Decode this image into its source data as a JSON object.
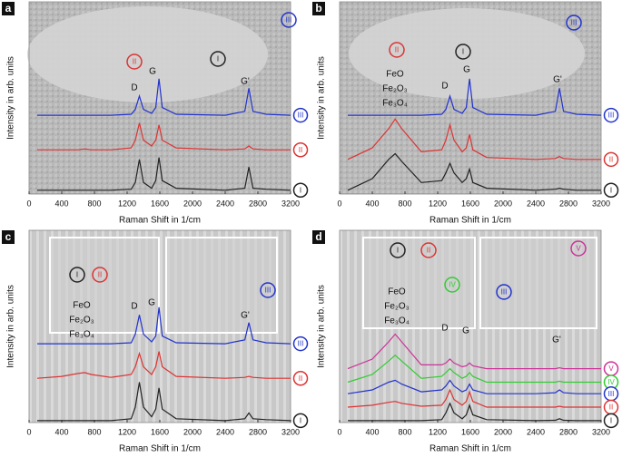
{
  "chart_data": [
    {
      "type": "line",
      "panel": "a",
      "x_label": "Raman Shift in 1/cm",
      "y_label": "Intensity in arb. units",
      "xlim": [
        0,
        3200
      ],
      "xticks": [
        0,
        400,
        800,
        1200,
        1600,
        2000,
        2400,
        2800,
        3200
      ],
      "ylim": [
        0,
        10
      ],
      "x": [
        100,
        400,
        600,
        680,
        760,
        1000,
        1250,
        1300,
        1350,
        1400,
        1500,
        1550,
        1590,
        1630,
        1800,
        2400,
        2640,
        2690,
        2740,
        2900,
        3200
      ],
      "series": [
        {
          "name": "III",
          "color": "#2233cc",
          "values": [
            4.1,
            4.1,
            4.1,
            4.1,
            4.1,
            4.1,
            4.15,
            4.4,
            5.1,
            4.4,
            4.2,
            4.5,
            6.0,
            4.5,
            4.15,
            4.1,
            4.3,
            5.5,
            4.3,
            4.15,
            4.1
          ]
        },
        {
          "name": "II",
          "color": "#dd3333",
          "values": [
            2.3,
            2.3,
            2.3,
            2.35,
            2.3,
            2.3,
            2.4,
            2.8,
            3.7,
            2.8,
            2.5,
            2.8,
            3.6,
            2.8,
            2.4,
            2.3,
            2.35,
            2.5,
            2.35,
            2.3,
            2.3
          ]
        },
        {
          "name": "I",
          "color": "#222222",
          "values": [
            0.2,
            0.2,
            0.2,
            0.2,
            0.2,
            0.2,
            0.25,
            0.6,
            1.8,
            0.6,
            0.3,
            0.7,
            1.9,
            0.7,
            0.3,
            0.2,
            0.3,
            1.4,
            0.3,
            0.25,
            0.2
          ]
        }
      ],
      "peak_labels": [
        "D",
        "G",
        "G'"
      ],
      "image_labels": [
        {
          "text": "III",
          "color": "#2233cc"
        },
        {
          "text": "II",
          "color": "#dd3333"
        },
        {
          "text": "I",
          "color": "#222222"
        }
      ]
    },
    {
      "type": "line",
      "panel": "b",
      "x_label": "Raman Shift in 1/cm",
      "y_label": "Intensity in arb. units",
      "xlim": [
        0,
        3200
      ],
      "xticks": [
        0,
        400,
        800,
        1200,
        1600,
        2000,
        2400,
        2800,
        3200
      ],
      "ylim": [
        0,
        10
      ],
      "x": [
        100,
        400,
        600,
        680,
        760,
        1000,
        1250,
        1300,
        1350,
        1400,
        1500,
        1550,
        1590,
        1630,
        1800,
        2400,
        2640,
        2690,
        2740,
        2900,
        3200
      ],
      "series": [
        {
          "name": "III",
          "color": "#2233cc",
          "values": [
            4.1,
            4.1,
            4.1,
            4.1,
            4.1,
            4.1,
            4.15,
            4.4,
            5.1,
            4.4,
            4.2,
            4.5,
            6.0,
            4.5,
            4.15,
            4.1,
            4.3,
            5.5,
            4.3,
            4.15,
            4.1
          ]
        },
        {
          "name": "II",
          "color": "#dd3333",
          "values": [
            1.8,
            2.4,
            3.4,
            3.9,
            3.4,
            2.2,
            2.3,
            2.8,
            3.6,
            2.8,
            2.2,
            2.4,
            3.1,
            2.3,
            1.9,
            1.8,
            1.85,
            1.95,
            1.85,
            1.8,
            1.8
          ]
        },
        {
          "name": "I",
          "color": "#222222",
          "values": [
            0.2,
            0.8,
            1.8,
            2.1,
            1.7,
            0.6,
            0.7,
            1.1,
            1.6,
            1.1,
            0.6,
            0.8,
            1.3,
            0.6,
            0.3,
            0.2,
            0.25,
            0.3,
            0.25,
            0.2,
            0.2
          ]
        }
      ],
      "peak_labels": [
        "D",
        "G",
        "G'"
      ],
      "phase_labels": [
        "FeO",
        "Fe₂O₃",
        "Fe₃O₄"
      ],
      "image_labels": [
        {
          "text": "II",
          "color": "#dd3333"
        },
        {
          "text": "I",
          "color": "#222222"
        },
        {
          "text": "III",
          "color": "#2233cc"
        }
      ]
    },
    {
      "type": "line",
      "panel": "c",
      "x_label": "Raman Shift in 1/cm",
      "y_label": "Intensity in arb. units",
      "xlim": [
        0,
        3200
      ],
      "xticks": [
        0,
        400,
        800,
        1200,
        1600,
        2000,
        2400,
        2800,
        3200
      ],
      "ylim": [
        0,
        10
      ],
      "x": [
        100,
        400,
        600,
        680,
        760,
        1000,
        1250,
        1300,
        1350,
        1400,
        1500,
        1550,
        1590,
        1630,
        1800,
        2400,
        2640,
        2690,
        2740,
        2900,
        3200
      ],
      "series": [
        {
          "name": "III",
          "color": "#2233cc",
          "values": [
            4.1,
            4.1,
            4.1,
            4.1,
            4.1,
            4.1,
            4.15,
            4.6,
            5.6,
            4.6,
            4.2,
            4.5,
            6.0,
            4.5,
            4.15,
            4.1,
            4.3,
            5.2,
            4.3,
            4.15,
            4.1
          ]
        },
        {
          "name": "II",
          "color": "#dd3333",
          "values": [
            2.3,
            2.4,
            2.55,
            2.6,
            2.5,
            2.35,
            2.5,
            2.9,
            3.6,
            2.9,
            2.5,
            2.9,
            3.7,
            2.9,
            2.4,
            2.3,
            2.35,
            2.4,
            2.35,
            2.3,
            2.3
          ]
        },
        {
          "name": "I",
          "color": "#222222",
          "values": [
            0.1,
            0.1,
            0.1,
            0.1,
            0.1,
            0.1,
            0.2,
            0.8,
            2.1,
            0.8,
            0.3,
            0.7,
            1.8,
            0.7,
            0.2,
            0.1,
            0.2,
            0.5,
            0.2,
            0.15,
            0.1
          ]
        }
      ],
      "peak_labels": [
        "D",
        "G",
        "G'"
      ],
      "phase_labels": [
        "FeO",
        "Fe₂O₃",
        "Fe₃O₄"
      ],
      "image_labels": [
        {
          "text": "I",
          "color": "#222222"
        },
        {
          "text": "II",
          "color": "#dd3333"
        },
        {
          "text": "III",
          "color": "#2233cc"
        }
      ]
    },
    {
      "type": "line",
      "panel": "d",
      "x_label": "Raman Shift in 1/cm",
      "y_label": "Intensity in arb. units",
      "xlim": [
        0,
        3200
      ],
      "xticks": [
        0,
        400,
        800,
        1200,
        1600,
        2000,
        2400,
        2800,
        3200
      ],
      "ylim": [
        0,
        10
      ],
      "x": [
        100,
        400,
        600,
        680,
        760,
        1000,
        1250,
        1300,
        1350,
        1400,
        1500,
        1550,
        1590,
        1630,
        1800,
        2400,
        2640,
        2690,
        2740,
        2900,
        3200
      ],
      "series": [
        {
          "name": "V",
          "color": "#cc3399",
          "values": [
            2.8,
            3.3,
            4.2,
            4.6,
            4.2,
            3.0,
            3.0,
            3.1,
            3.3,
            3.1,
            2.9,
            2.95,
            3.1,
            2.95,
            2.8,
            2.8,
            2.8,
            2.85,
            2.8,
            2.8,
            2.8
          ]
        },
        {
          "name": "IV",
          "color": "#33cc33",
          "values": [
            2.1,
            2.5,
            3.2,
            3.5,
            3.2,
            2.3,
            2.4,
            2.6,
            2.8,
            2.6,
            2.3,
            2.4,
            2.6,
            2.4,
            2.1,
            2.1,
            2.1,
            2.15,
            2.1,
            2.1,
            2.1
          ]
        },
        {
          "name": "III",
          "color": "#2233cc",
          "values": [
            1.5,
            1.7,
            2.1,
            2.2,
            2.0,
            1.6,
            1.7,
            1.9,
            2.2,
            1.9,
            1.6,
            1.7,
            2.0,
            1.7,
            1.5,
            1.5,
            1.55,
            1.7,
            1.55,
            1.5,
            1.5
          ]
        },
        {
          "name": "II",
          "color": "#dd3333",
          "values": [
            0.8,
            0.9,
            1.05,
            1.1,
            1.0,
            0.85,
            0.9,
            1.2,
            1.7,
            1.2,
            0.9,
            1.1,
            1.6,
            1.1,
            0.8,
            0.8,
            0.8,
            0.85,
            0.8,
            0.8,
            0.8
          ]
        },
        {
          "name": "I",
          "color": "#222222",
          "values": [
            0.1,
            0.1,
            0.1,
            0.1,
            0.1,
            0.1,
            0.15,
            0.5,
            1.0,
            0.5,
            0.2,
            0.4,
            0.9,
            0.4,
            0.15,
            0.1,
            0.12,
            0.2,
            0.12,
            0.1,
            0.1
          ]
        }
      ],
      "peak_labels": [
        "D",
        "G",
        "G'"
      ],
      "phase_labels": [
        "FeO",
        "Fe₂O₃",
        "Fe₃O₄"
      ],
      "image_labels": [
        {
          "text": "I",
          "color": "#222222"
        },
        {
          "text": "II",
          "color": "#dd3333"
        },
        {
          "text": "V",
          "color": "#cc3399"
        },
        {
          "text": "IV",
          "color": "#33cc33"
        },
        {
          "text": "III",
          "color": "#2233cc"
        }
      ]
    }
  ]
}
